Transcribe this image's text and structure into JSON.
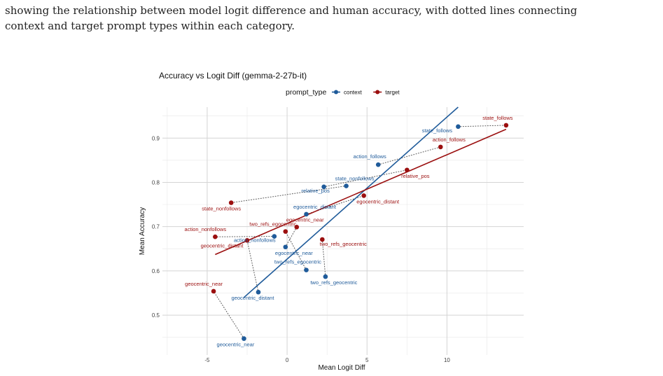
{
  "caption": {
    "line1": "showing the relationship between model logit difference and human accuracy, with dotted lines connecting",
    "line2": "context and target prompt types within each category."
  },
  "chart_data": {
    "type": "scatter",
    "title": "Accuracy vs Logit Diff (gemma-2-27b-it)",
    "xlabel": "Mean Logit Diff",
    "ylabel": "Mean Accuracy",
    "xlim": [
      -7.8,
      14.8
    ],
    "ylim": [
      0.41,
      0.97
    ],
    "xticks": [
      -5,
      0,
      5,
      10
    ],
    "yticks": [
      0.5,
      0.6,
      0.7,
      0.8,
      0.9
    ],
    "xtick_labels": [
      "-5",
      "0",
      "5",
      "10"
    ],
    "ytick_labels": [
      "0.5",
      "0.6",
      "0.7",
      "0.8",
      "0.9"
    ],
    "grid": true,
    "legend": {
      "title": "prompt_type",
      "placement": "top",
      "entries": [
        {
          "name": "context",
          "color": "#1f5b9a"
        },
        {
          "name": "target",
          "color": "#9b0f0f"
        }
      ]
    },
    "series": [
      {
        "name": "context",
        "color": "#1f5b9a",
        "points": [
          {
            "label": "state_follows",
            "x": 10.7,
            "y": 0.926
          },
          {
            "label": "action_follows",
            "x": 5.7,
            "y": 0.84
          },
          {
            "label": "state_nonfollows",
            "x": 3.7,
            "y": 0.792
          },
          {
            "label": "relative_pos",
            "x": 2.3,
            "y": 0.79
          },
          {
            "label": "egocentric_distant",
            "x": 1.2,
            "y": 0.728
          },
          {
            "label": "action_nonfollows",
            "x": -0.8,
            "y": 0.678
          },
          {
            "label": "egocentric_near",
            "x": -0.1,
            "y": 0.654
          },
          {
            "label": "two_refs_egocentric",
            "x": 1.2,
            "y": 0.602
          },
          {
            "label": "two_refs_geocentric",
            "x": 2.4,
            "y": 0.587
          },
          {
            "label": "geocentric_distant",
            "x": -1.8,
            "y": 0.552
          },
          {
            "label": "geocentric_near",
            "x": -2.7,
            "y": 0.447
          }
        ],
        "trend": {
          "x": [
            -2.7,
            10.7
          ],
          "y": [
            0.54,
            0.97
          ]
        }
      },
      {
        "name": "target",
        "color": "#9b0f0f",
        "points": [
          {
            "label": "state_follows",
            "x": 13.7,
            "y": 0.929
          },
          {
            "label": "action_follows",
            "x": 9.6,
            "y": 0.88
          },
          {
            "label": "relative_pos",
            "x": 7.5,
            "y": 0.828
          },
          {
            "label": "egocentric_distant",
            "x": 4.8,
            "y": 0.77
          },
          {
            "label": "state_nonfollows",
            "x": -3.5,
            "y": 0.754
          },
          {
            "label": "egocentric_near",
            "x": 0.6,
            "y": 0.699
          },
          {
            "label": "two_refs_egocentric",
            "x": -0.1,
            "y": 0.689
          },
          {
            "label": "action_nonfollows",
            "x": -4.5,
            "y": 0.677
          },
          {
            "label": "two_refs_geocentric",
            "x": 2.2,
            "y": 0.671
          },
          {
            "label": "geocentric_distant",
            "x": -2.5,
            "y": 0.669
          },
          {
            "label": "geocentric_near",
            "x": -4.6,
            "y": 0.554
          }
        ],
        "trend": {
          "x": [
            -4.5,
            13.7
          ],
          "y": [
            0.637,
            0.92
          ]
        }
      }
    ]
  }
}
